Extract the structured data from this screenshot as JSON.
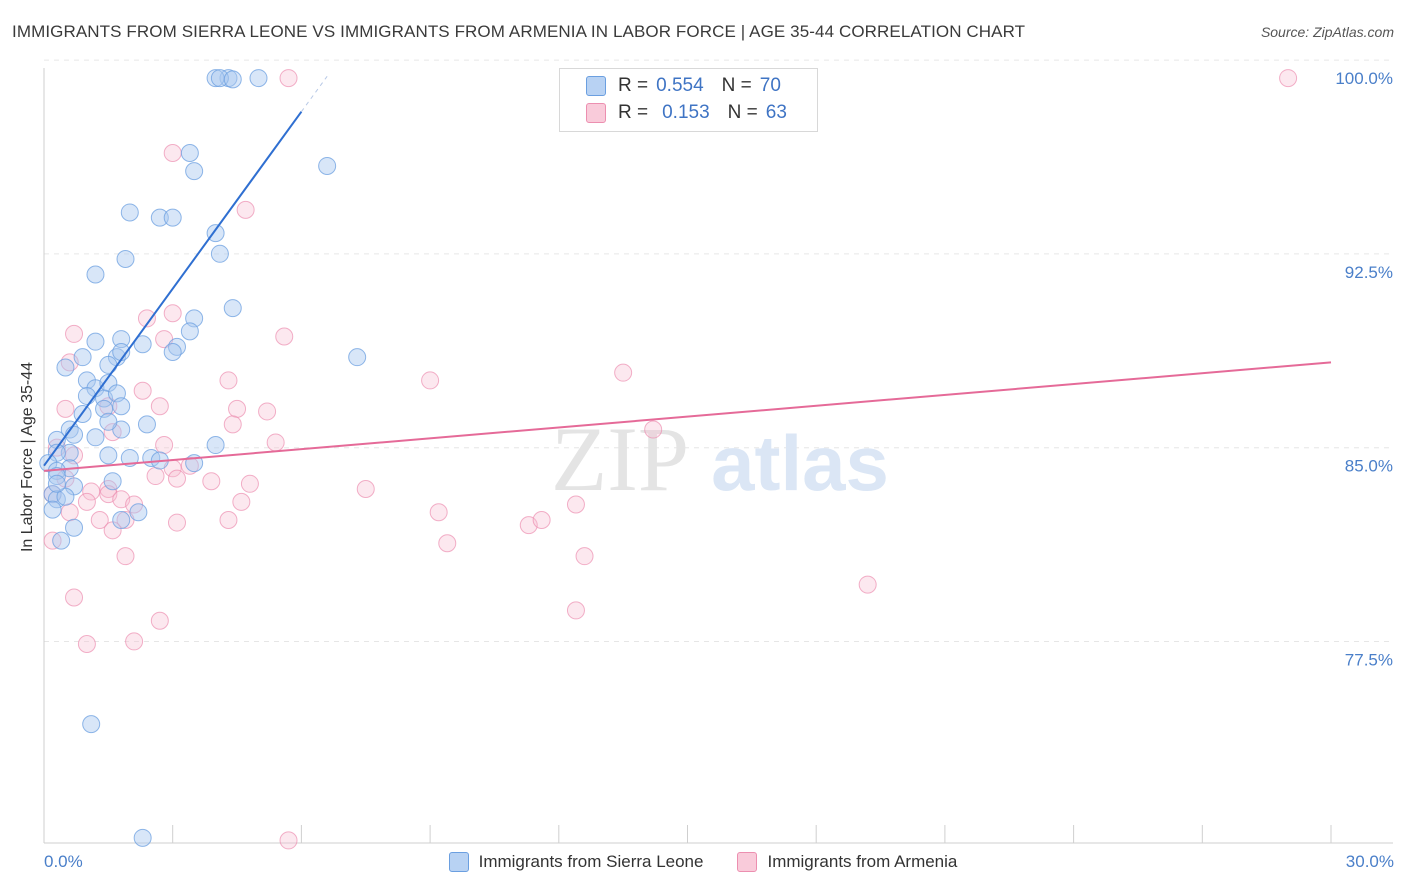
{
  "title": "IMMIGRANTS FROM SIERRA LEONE VS IMMIGRANTS FROM ARMENIA IN LABOR FORCE | AGE 35-44 CORRELATION CHART",
  "source": "Source: ZipAtlas.com",
  "watermark": {
    "zip": "ZIP",
    "atlas": "atlas"
  },
  "legend_top": {
    "rows": [
      {
        "r_label": "R =",
        "r_value": "0.554",
        "n_label": "N =",
        "n_value": "70"
      },
      {
        "r_label": "R =",
        "r_value": "0.153",
        "n_label": "N =",
        "n_value": "63"
      }
    ]
  },
  "legend_bottom": [
    "Immigrants from Sierra Leone",
    "Immigrants from Armenia"
  ],
  "colors": {
    "blue_fill": "#a9c8f0",
    "blue_stroke": "#6b9fe0",
    "blue_line": "#2f6fd1",
    "pink_fill": "#f7bcd0",
    "pink_stroke": "#ec8fb0",
    "pink_line": "#e56a98",
    "axis_text": "#4a7fc9",
    "grid": "#e6e6e6"
  },
  "chart_data": {
    "type": "scatter",
    "title": "IMMIGRANTS FROM SIERRA LEONE VS IMMIGRANTS FROM ARMENIA IN LABOR FORCE | AGE 35-44 CORRELATION CHART",
    "xlabel": "",
    "ylabel": "In Labor Force | Age 35-44",
    "xlim": [
      0,
      30
    ],
    "ylim": [
      70.4,
      100.7
    ],
    "x_tick_labels": [
      "0.0%",
      "30.0%"
    ],
    "y_ticks": [
      77.5,
      85.0,
      92.5,
      100.0
    ],
    "y_tick_labels": [
      "77.5%",
      "85.0%",
      "92.5%",
      "100.0%"
    ],
    "grid": true,
    "series": [
      {
        "name": "Immigrants from Sierra Leone",
        "r": 0.554,
        "n": 70,
        "trend": {
          "x0": 0.0,
          "y0": 85.0,
          "x1": 6.0,
          "y1": 98.7,
          "dash_x1": 6.6
        },
        "points": [
          [
            0.4,
            82.1
          ],
          [
            4.3,
            100.0
          ],
          [
            4.0,
            100.0
          ],
          [
            4.1,
            100.0
          ],
          [
            5.0,
            100.0
          ],
          [
            4.4,
            99.95
          ],
          [
            3.4,
            97.1
          ],
          [
            3.5,
            96.4
          ],
          [
            6.6,
            96.6
          ],
          [
            2.0,
            94.8
          ],
          [
            2.7,
            94.6
          ],
          [
            3.0,
            94.6
          ],
          [
            4.0,
            94.0
          ],
          [
            4.1,
            93.2
          ],
          [
            1.9,
            93.0
          ],
          [
            1.2,
            92.4
          ],
          [
            3.5,
            90.7
          ],
          [
            4.4,
            91.1
          ],
          [
            3.4,
            90.2
          ],
          [
            1.2,
            89.8
          ],
          [
            1.8,
            89.9
          ],
          [
            2.3,
            89.7
          ],
          [
            3.1,
            89.6
          ],
          [
            1.7,
            89.2
          ],
          [
            3.0,
            89.4
          ],
          [
            7.3,
            89.2
          ],
          [
            1.8,
            89.4
          ],
          [
            0.9,
            89.2
          ],
          [
            1.5,
            88.9
          ],
          [
            0.5,
            88.8
          ],
          [
            1.0,
            88.3
          ],
          [
            1.2,
            88.0
          ],
          [
            1.5,
            88.2
          ],
          [
            1.0,
            87.7
          ],
          [
            1.4,
            87.6
          ],
          [
            1.7,
            87.8
          ],
          [
            1.4,
            87.2
          ],
          [
            1.8,
            87.3
          ],
          [
            0.9,
            87.0
          ],
          [
            1.8,
            86.4
          ],
          [
            1.5,
            86.7
          ],
          [
            2.4,
            86.6
          ],
          [
            0.6,
            86.4
          ],
          [
            0.7,
            86.2
          ],
          [
            0.3,
            86.0
          ],
          [
            0.6,
            85.5
          ],
          [
            0.3,
            85.5
          ],
          [
            4.0,
            85.8
          ],
          [
            1.5,
            85.4
          ],
          [
            2.5,
            85.3
          ],
          [
            2.7,
            85.2
          ],
          [
            2.0,
            85.3
          ],
          [
            0.1,
            85.1
          ],
          [
            0.6,
            84.9
          ],
          [
            0.3,
            84.8
          ],
          [
            0.3,
            84.6
          ],
          [
            1.6,
            84.4
          ],
          [
            0.7,
            84.2
          ],
          [
            0.2,
            83.9
          ],
          [
            0.3,
            83.7
          ],
          [
            0.5,
            83.8
          ],
          [
            0.2,
            83.3
          ],
          [
            2.2,
            83.2
          ],
          [
            1.8,
            82.9
          ],
          [
            0.7,
            82.6
          ],
          [
            3.5,
            85.1
          ],
          [
            1.1,
            75.0
          ],
          [
            2.3,
            70.6
          ],
          [
            0.3,
            84.3
          ],
          [
            1.2,
            86.1
          ]
        ]
      },
      {
        "name": "Immigrants from Armenia",
        "r": 0.153,
        "n": 63,
        "trend": {
          "x0": 0.0,
          "y0": 84.8,
          "x1": 30.0,
          "y1": 89.0
        },
        "points": [
          [
            5.7,
            100.0
          ],
          [
            29.0,
            100.0
          ],
          [
            3.0,
            97.1
          ],
          [
            4.7,
            94.9
          ],
          [
            3.0,
            90.9
          ],
          [
            2.4,
            90.7
          ],
          [
            0.7,
            90.1
          ],
          [
            5.6,
            90.0
          ],
          [
            2.8,
            89.9
          ],
          [
            0.6,
            89.0
          ],
          [
            4.3,
            88.3
          ],
          [
            9.0,
            88.3
          ],
          [
            13.5,
            88.6
          ],
          [
            2.3,
            87.9
          ],
          [
            2.7,
            87.3
          ],
          [
            4.5,
            87.2
          ],
          [
            1.5,
            87.3
          ],
          [
            0.5,
            87.2
          ],
          [
            5.2,
            87.1
          ],
          [
            4.4,
            86.6
          ],
          [
            1.6,
            86.3
          ],
          [
            14.2,
            86.4
          ],
          [
            5.4,
            85.9
          ],
          [
            2.8,
            85.8
          ],
          [
            0.3,
            85.7
          ],
          [
            0.7,
            85.4
          ],
          [
            3.0,
            84.9
          ],
          [
            3.4,
            85.0
          ],
          [
            2.6,
            84.6
          ],
          [
            3.9,
            84.4
          ],
          [
            0.5,
            84.5
          ],
          [
            1.1,
            84.0
          ],
          [
            1.5,
            84.1
          ],
          [
            3.1,
            84.5
          ],
          [
            4.8,
            84.3
          ],
          [
            7.5,
            84.1
          ],
          [
            0.2,
            83.9
          ],
          [
            1.0,
            83.6
          ],
          [
            1.5,
            83.9
          ],
          [
            1.8,
            83.7
          ],
          [
            2.1,
            83.5
          ],
          [
            4.6,
            83.6
          ],
          [
            9.2,
            83.2
          ],
          [
            12.4,
            83.5
          ],
          [
            0.6,
            83.2
          ],
          [
            1.3,
            82.9
          ],
          [
            1.9,
            82.9
          ],
          [
            3.1,
            82.8
          ],
          [
            4.3,
            82.9
          ],
          [
            11.3,
            82.7
          ],
          [
            11.6,
            82.9
          ],
          [
            1.6,
            82.5
          ],
          [
            0.2,
            82.1
          ],
          [
            9.4,
            82.0
          ],
          [
            1.9,
            81.5
          ],
          [
            12.6,
            81.5
          ],
          [
            19.2,
            80.4
          ],
          [
            0.7,
            79.9
          ],
          [
            12.4,
            79.4
          ],
          [
            2.7,
            79.0
          ],
          [
            1.0,
            78.1
          ],
          [
            2.1,
            78.2
          ],
          [
            5.7,
            70.5
          ]
        ]
      }
    ]
  }
}
